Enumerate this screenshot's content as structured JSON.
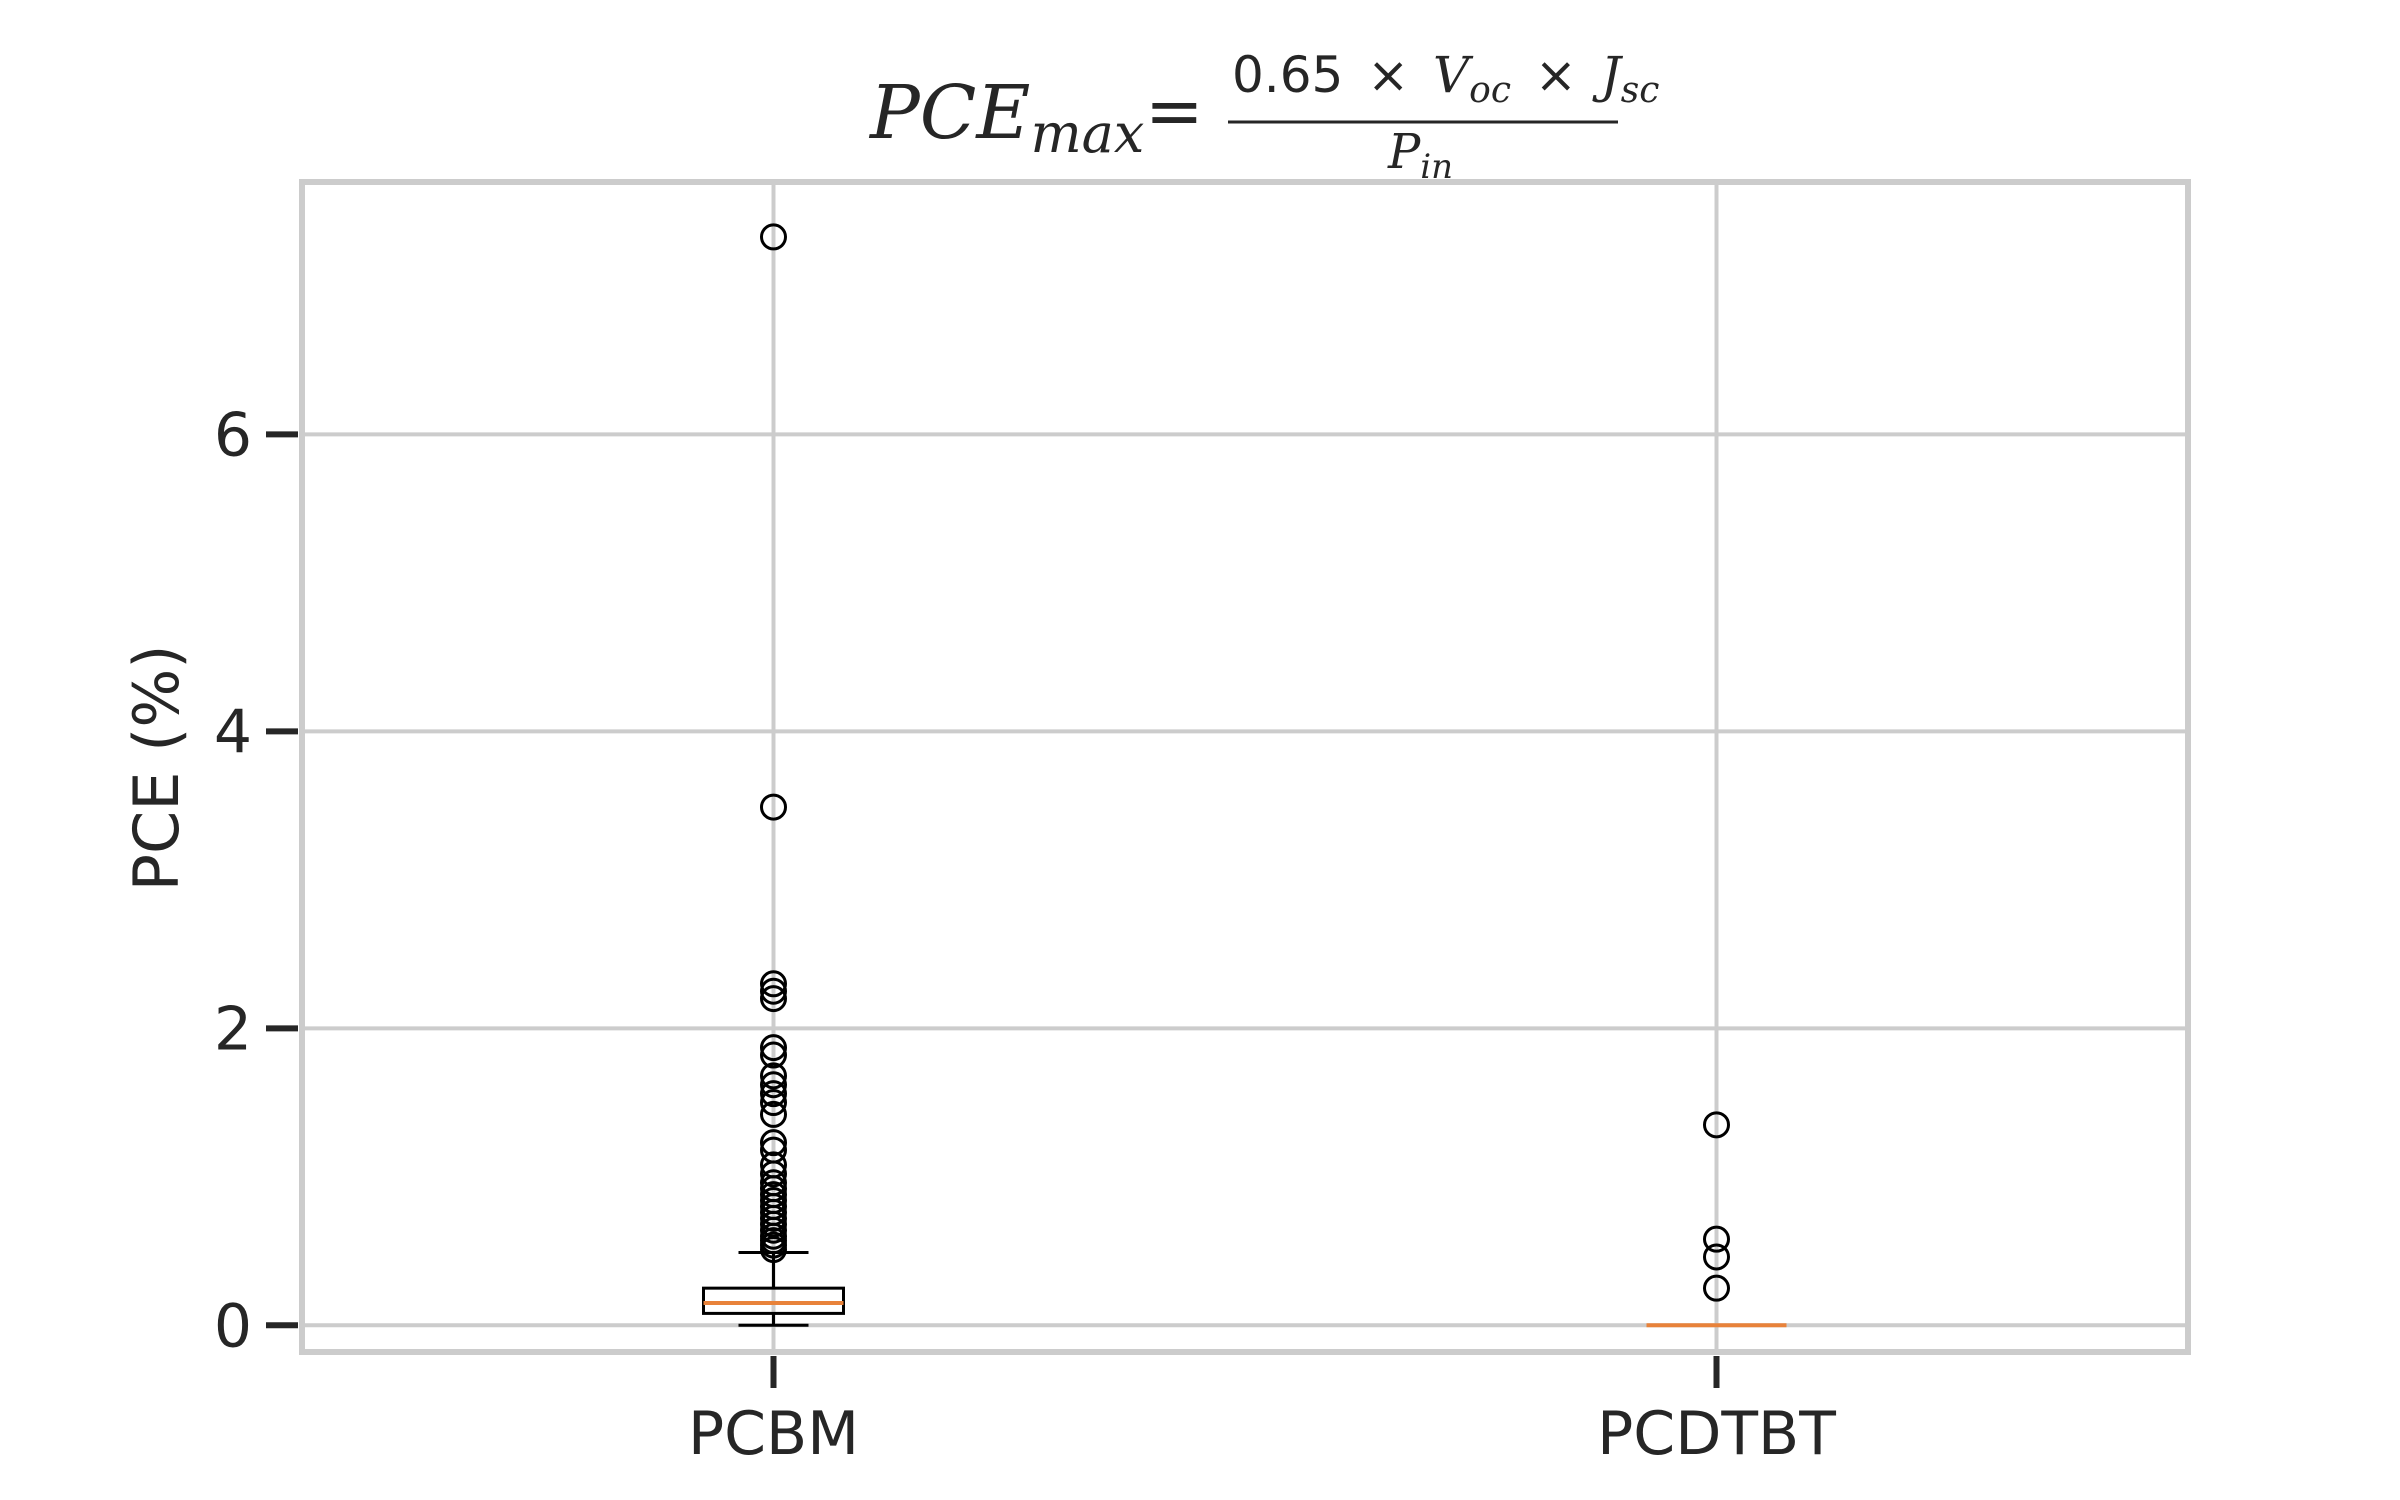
{
  "chart_data": {
    "type": "boxplot",
    "title": {
      "lhs_base": "PCE",
      "lhs_subscript": "max",
      "equals": "=",
      "numerator_coefficient": "0.65",
      "times": "×",
      "voc_base": "V",
      "voc_subscript": "oc",
      "jsc_base": "J",
      "jsc_subscript": "sc",
      "denominator_base": "P",
      "denominator_subscript": "in"
    },
    "ylabel": "PCE (%)",
    "xlabel": "",
    "ylim": [
      -0.18,
      7.7
    ],
    "y_ticks": [
      0,
      2,
      4,
      6
    ],
    "grid": true,
    "categories": [
      "PCBM",
      "PCDTBT"
    ],
    "boxes": [
      {
        "category": "PCBM",
        "whisker_low": 0.0,
        "q1": 0.08,
        "median": 0.15,
        "q3": 0.25,
        "whisker_high": 0.49,
        "outliers": [
          7.33,
          3.49,
          2.3,
          2.25,
          2.2,
          1.87,
          1.82,
          1.68,
          1.62,
          1.56,
          1.5,
          1.42,
          1.23,
          1.18,
          1.08,
          1.02,
          0.96,
          0.92,
          0.88,
          0.84,
          0.8,
          0.76,
          0.72,
          0.68,
          0.64,
          0.6,
          0.57,
          0.54,
          0.51
        ]
      },
      {
        "category": "PCDTBT",
        "whisker_low": 0.0,
        "q1": 0.0,
        "median": 0.0,
        "q3": 0.0,
        "whisker_high": 0.0,
        "outliers": [
          1.35,
          0.58,
          0.46,
          0.25
        ]
      }
    ],
    "colors": {
      "box": "#000000",
      "median": "#e8823a",
      "grid": "#cccccc",
      "frame": "#cccccc",
      "text": "#262626"
    }
  }
}
